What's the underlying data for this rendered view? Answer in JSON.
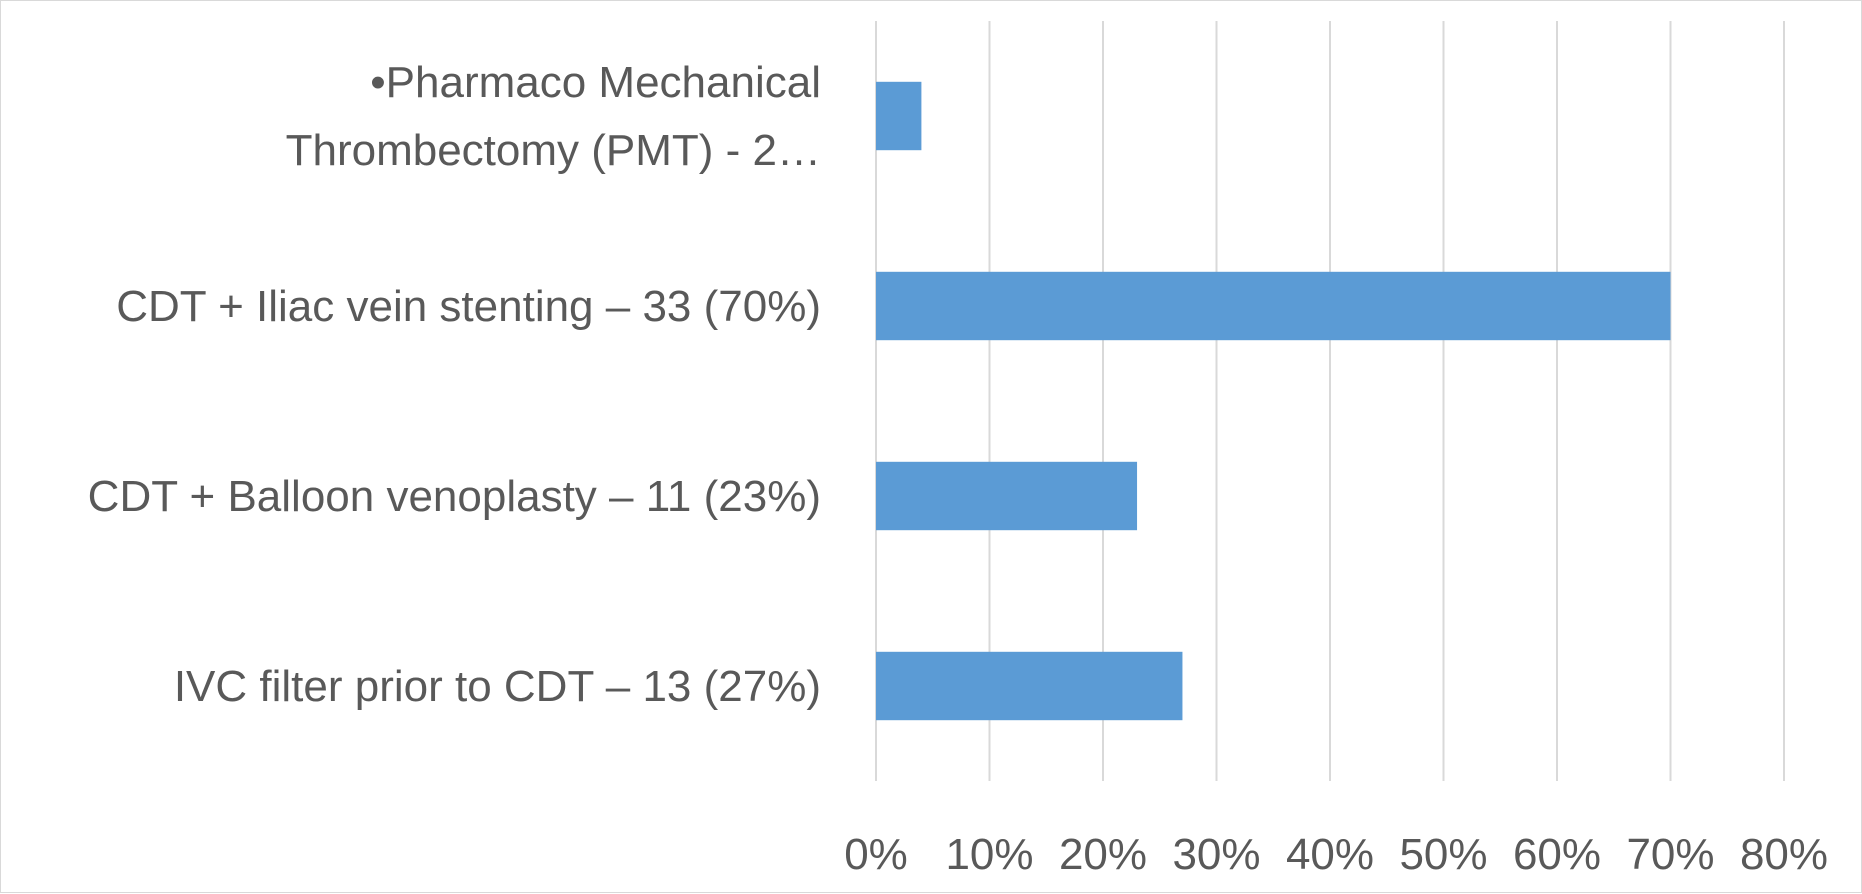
{
  "chart_data": {
    "type": "bar",
    "orientation": "horizontal",
    "categories": [
      [
        "•Pharmaco Mechanical",
        "Thrombectomy (PMT) -  2…"
      ],
      [
        "CDT + Iliac vein stenting – 33 (70%)"
      ],
      [
        "CDT + Balloon venoplasty – 11 (23%)"
      ],
      [
        "IVC filter prior to CDT – 13 (27%)"
      ]
    ],
    "values": [
      4,
      70,
      23,
      27
    ],
    "xlim": [
      0,
      80
    ],
    "xticks": [
      0,
      10,
      20,
      30,
      40,
      50,
      60,
      70,
      80
    ],
    "tick_labels": [
      "0%",
      "10%",
      "20%",
      "30%",
      "40%",
      "50%",
      "60%",
      "70%",
      "80%"
    ],
    "title": "",
    "xlabel": "",
    "ylabel": "",
    "grid": "vertical",
    "legend": "none",
    "bar_color": "#5b9bd5",
    "grid_color": "#d9d9d9",
    "text_color": "#595959"
  }
}
